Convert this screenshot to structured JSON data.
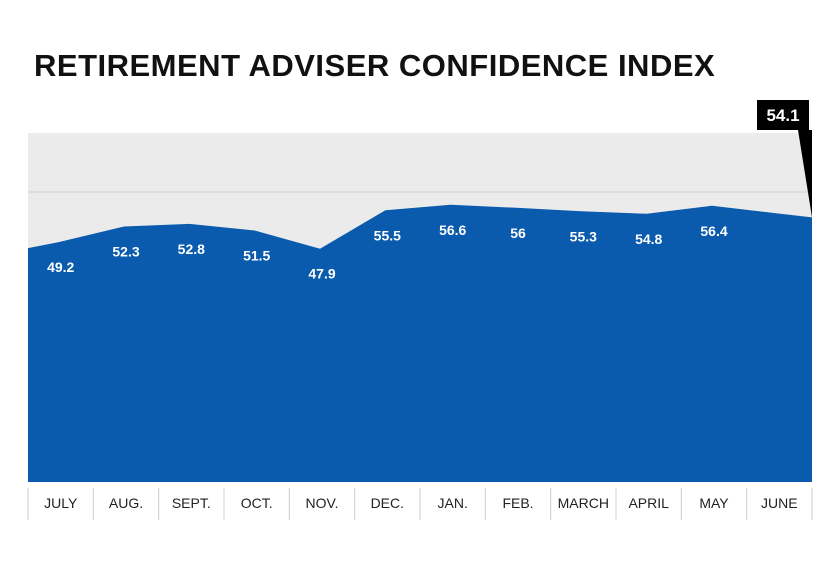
{
  "chart_data": {
    "type": "area",
    "title": "RETIREMENT ADVISER CONFIDENCE INDEX",
    "categories": [
      "JULY",
      "AUG.",
      "SEPT.",
      "OCT.",
      "NOV.",
      "DEC.",
      "JAN.",
      "FEB.",
      "MARCH",
      "APRIL",
      "MAY",
      "JUNE"
    ],
    "series": [
      {
        "values": [
          49.2,
          52.3,
          52.8,
          51.5,
          47.9,
          55.5,
          56.6,
          56,
          55.3,
          54.8,
          56.4,
          54.1
        ]
      }
    ],
    "highlight": {
      "label": "54.1"
    },
    "colors": {
      "area": "#0a5aad",
      "plot_bg": "#ebebeb",
      "callout": "#000000",
      "gridline": "#d2d2d2"
    },
    "grid": true
  }
}
